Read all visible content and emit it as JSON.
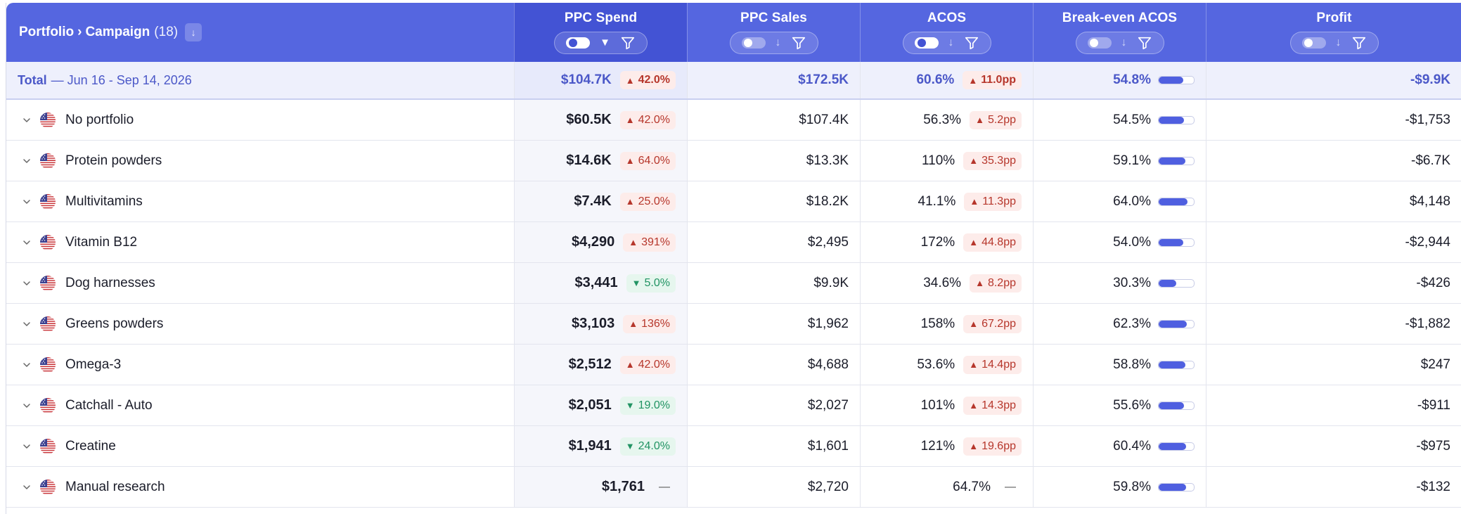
{
  "header": {
    "crumb_portfolio": "Portfolio",
    "crumb_sep": "›",
    "crumb_campaign": "Campaign",
    "crumb_count": "(18)",
    "columns": [
      {
        "label": "PPC Spend",
        "toggle_on": true,
        "sorted": true
      },
      {
        "label": "PPC Sales",
        "toggle_on": false,
        "sorted": false
      },
      {
        "label": "ACOS",
        "toggle_on": true,
        "sorted": false
      },
      {
        "label": "Break-even ACOS",
        "toggle_on": false,
        "sorted": false
      },
      {
        "label": "Profit",
        "toggle_on": false,
        "sorted": false
      }
    ]
  },
  "total": {
    "label": "Total",
    "range": "— Jun 16 - Sep 14, 2026",
    "spend": "$104.7K",
    "spend_delta": "42.0%",
    "spend_dir": "up",
    "sales": "$172.5K",
    "acos": "60.6%",
    "acos_delta": "11.0pp",
    "acos_dir": "up",
    "be_acos": "54.8%",
    "be_fill": 0.7,
    "profit": "-$9.9K"
  },
  "rows": [
    {
      "name": "No portfolio",
      "spend": "$60.5K",
      "spend_delta": "42.0%",
      "spend_dir": "up",
      "sales": "$107.4K",
      "acos": "56.3%",
      "acos_delta": "5.2pp",
      "acos_dir": "up",
      "be_acos": "54.5%",
      "be_fill": 0.72,
      "profit": "-$1,753"
    },
    {
      "name": "Protein powders",
      "spend": "$14.6K",
      "spend_delta": "64.0%",
      "spend_dir": "up",
      "sales": "$13.3K",
      "acos": "110%",
      "acos_delta": "35.3pp",
      "acos_dir": "up",
      "be_acos": "59.1%",
      "be_fill": 0.76,
      "profit": "-$6.7K"
    },
    {
      "name": "Multivitamins",
      "spend": "$7.4K",
      "spend_delta": "25.0%",
      "spend_dir": "up",
      "sales": "$18.2K",
      "acos": "41.1%",
      "acos_delta": "11.3pp",
      "acos_dir": "up",
      "be_acos": "64.0%",
      "be_fill": 0.82,
      "profit": "$4,148"
    },
    {
      "name": "Vitamin B12",
      "spend": "$4,290",
      "spend_delta": "391%",
      "spend_dir": "up",
      "sales": "$2,495",
      "acos": "172%",
      "acos_delta": "44.8pp",
      "acos_dir": "up",
      "be_acos": "54.0%",
      "be_fill": 0.7,
      "profit": "-$2,944"
    },
    {
      "name": "Dog harnesses",
      "spend": "$3,441",
      "spend_delta": "5.0%",
      "spend_dir": "down",
      "sales": "$9.9K",
      "acos": "34.6%",
      "acos_delta": "8.2pp",
      "acos_dir": "up",
      "be_acos": "30.3%",
      "be_fill": 0.5,
      "profit": "-$426"
    },
    {
      "name": "Greens powders",
      "spend": "$3,103",
      "spend_delta": "136%",
      "spend_dir": "up",
      "sales": "$1,962",
      "acos": "158%",
      "acos_delta": "67.2pp",
      "acos_dir": "up",
      "be_acos": "62.3%",
      "be_fill": 0.8,
      "profit": "-$1,882"
    },
    {
      "name": "Omega-3",
      "spend": "$2,512",
      "spend_delta": "42.0%",
      "spend_dir": "up",
      "sales": "$4,688",
      "acos": "53.6%",
      "acos_delta": "14.4pp",
      "acos_dir": "up",
      "be_acos": "58.8%",
      "be_fill": 0.76,
      "profit": "$247"
    },
    {
      "name": "Catchall - Auto",
      "spend": "$2,051",
      "spend_delta": "19.0%",
      "spend_dir": "down",
      "sales": "$2,027",
      "acos": "101%",
      "acos_delta": "14.3pp",
      "acos_dir": "up",
      "be_acos": "55.6%",
      "be_fill": 0.72,
      "profit": "-$911"
    },
    {
      "name": "Creatine",
      "spend": "$1,941",
      "spend_delta": "24.0%",
      "spend_dir": "down",
      "sales": "$1,601",
      "acos": "121%",
      "acos_delta": "19.6pp",
      "acos_dir": "up",
      "be_acos": "60.4%",
      "be_fill": 0.78,
      "profit": "-$975"
    },
    {
      "name": "Manual research",
      "spend": "$1,761",
      "spend_delta": "—",
      "spend_dir": "neutral",
      "sales": "$2,720",
      "acos": "64.7%",
      "acos_delta": "—",
      "acos_dir": "neutral",
      "be_acos": "59.8%",
      "be_fill": 0.77,
      "profit": "-$132"
    }
  ],
  "colors": {
    "header": "#5566e0",
    "header_active": "#4353d4",
    "up": "#b6362b",
    "down": "#219363",
    "bar": "#4f5fe0"
  }
}
